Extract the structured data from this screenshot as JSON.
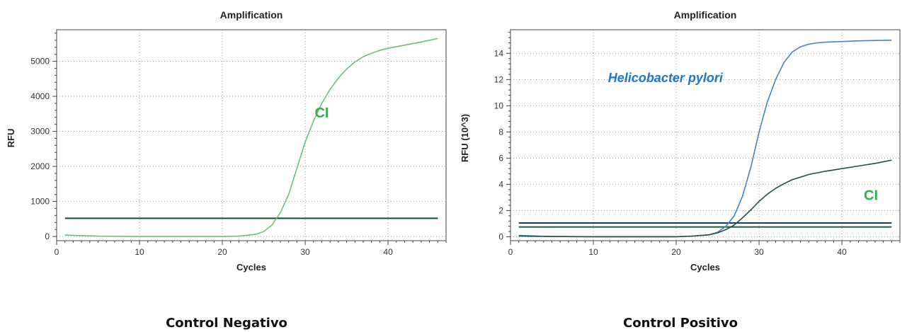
{
  "charts": [
    {
      "id": "left",
      "caption": "Control Negativo",
      "chart_data": {
        "type": "line",
        "title": "Amplification",
        "xlabel": "Cycles",
        "ylabel": "RFU",
        "xlim": [
          0,
          47
        ],
        "ylim": [
          -120,
          5900
        ],
        "x_ticks": [
          0,
          10,
          20,
          30,
          40
        ],
        "y_ticks": [
          0,
          1000,
          2000,
          3000,
          4000,
          5000
        ],
        "grid": true,
        "series": [
          {
            "name": "CI",
            "color": "#6cc07a",
            "x": [
              1,
              5,
              10,
              15,
              20,
              22,
              24,
              25,
              26,
              27,
              28,
              29,
              30,
              31,
              32,
              33,
              34,
              35,
              36,
              37,
              38,
              39,
              40,
              42,
              44,
              46
            ],
            "y": [
              40,
              10,
              0,
              0,
              0,
              10,
              60,
              140,
              330,
              680,
              1200,
              1950,
              2700,
              3300,
              3800,
              4200,
              4520,
              4780,
              4980,
              5130,
              5230,
              5310,
              5370,
              5460,
              5550,
              5650
            ]
          }
        ],
        "thresholds": [
          {
            "y": 520,
            "color": "#0e4f2a"
          }
        ],
        "annotations": [
          {
            "text": "CI",
            "x": 32,
            "y": 3400,
            "color": "#2ab34f"
          }
        ]
      }
    },
    {
      "id": "right",
      "caption": "Control Positivo",
      "chart_data": {
        "type": "line",
        "title": "Amplification",
        "xlabel": "Cycles",
        "ylabel": "RFU (10^3)",
        "xlim": [
          0,
          47
        ],
        "ylim": [
          -0.3,
          15.8
        ],
        "x_ticks": [
          0,
          10,
          20,
          30,
          40
        ],
        "y_ticks": [
          0,
          2,
          4,
          6,
          8,
          10,
          12,
          14
        ],
        "grid": true,
        "series": [
          {
            "name": "Helicobacter pylori",
            "color": "#3f86c4",
            "x": [
              1,
              5,
              10,
              15,
              20,
              22,
              24,
              25,
              26,
              27,
              28,
              29,
              30,
              31,
              32,
              33,
              34,
              35,
              36,
              37,
              38,
              40,
              42,
              44,
              46
            ],
            "y": [
              0.1,
              0.02,
              0,
              0,
              0,
              0.05,
              0.15,
              0.35,
              0.8,
              1.6,
              3.1,
              5.3,
              8.0,
              10.3,
              12.0,
              13.3,
              14.1,
              14.5,
              14.7,
              14.8,
              14.85,
              14.9,
              14.95,
              14.98,
              15.0
            ]
          },
          {
            "name": "CI",
            "color": "#27523a",
            "x": [
              1,
              5,
              10,
              15,
              20,
              22,
              24,
              25,
              26,
              27,
              28,
              29,
              30,
              31,
              32,
              33,
              34,
              35,
              36,
              38,
              40,
              42,
              44,
              46
            ],
            "y": [
              0.05,
              0.02,
              0,
              0,
              0,
              0.05,
              0.15,
              0.3,
              0.55,
              0.9,
              1.45,
              2.05,
              2.7,
              3.25,
              3.7,
              4.05,
              4.35,
              4.55,
              4.75,
              5.0,
              5.2,
              5.4,
              5.6,
              5.85
            ]
          }
        ],
        "thresholds": [
          {
            "y": 1.05,
            "color": "#1d3a66"
          },
          {
            "y": 0.75,
            "color": "#1f5e45"
          }
        ],
        "annotations": [
          {
            "text": "Helicobacter pylori",
            "x": 18.7,
            "y": 11.8,
            "color": "#1f77c7",
            "italic": true
          },
          {
            "text": "CI",
            "x": 43.5,
            "y": 2.8,
            "color": "#2ab34f"
          }
        ]
      }
    }
  ]
}
